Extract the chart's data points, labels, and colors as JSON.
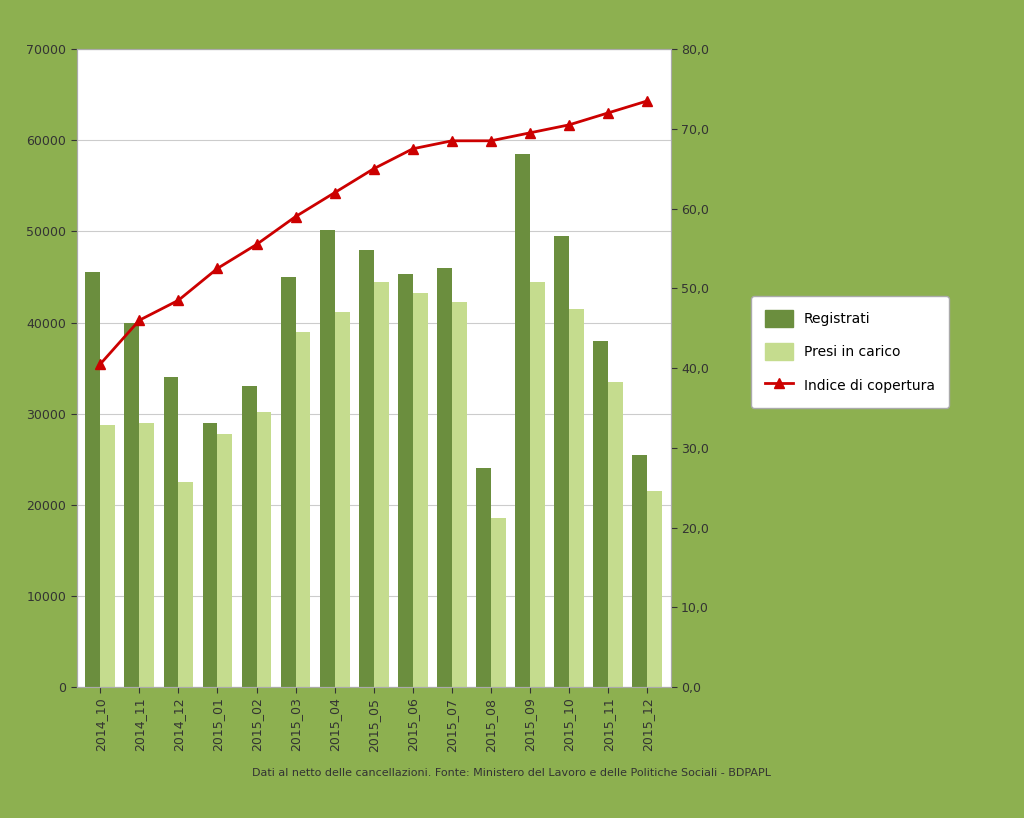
{
  "categories": [
    "2014_10",
    "2014_11",
    "2014_12",
    "2015_01",
    "2015_02",
    "2015_03",
    "2015_04",
    "2015_05",
    "2015_06",
    "2015_07",
    "2015_08",
    "2015_09",
    "2015_10",
    "2015_11",
    "2015_12"
  ],
  "registrati": [
    45500,
    40000,
    34000,
    29000,
    33000,
    45000,
    50200,
    48000,
    45300,
    46000,
    24000,
    58500,
    49500,
    38000,
    25500
  ],
  "presi_in_carico": [
    28800,
    29000,
    22500,
    27800,
    30200,
    39000,
    41200,
    44500,
    43200,
    42300,
    18500,
    44500,
    41500,
    33500,
    21500
  ],
  "indice_copertura": [
    40.5,
    46.0,
    48.5,
    52.5,
    55.5,
    59.0,
    62.0,
    65.0,
    67.5,
    68.5,
    68.5,
    69.5,
    70.5,
    72.0,
    73.5
  ],
  "bar_color_registrati": "#6b8e3e",
  "bar_color_presi": "#c5dc8e",
  "line_color": "#cc0000",
  "ylim_left": [
    0,
    70000
  ],
  "ylim_right": [
    0.0,
    80.0
  ],
  "yticks_left": [
    0,
    10000,
    20000,
    30000,
    40000,
    50000,
    60000,
    70000
  ],
  "yticks_right": [
    0.0,
    10.0,
    20.0,
    30.0,
    40.0,
    50.0,
    60.0,
    70.0,
    80.0
  ],
  "legend_labels": [
    "Registrati",
    "Presi in carico",
    "Indice di copertura"
  ],
  "footnote": "Dati al netto delle cancellazioni. Fonte: Ministero del Lavoro e delle Politiche Sociali - BDPAPL",
  "background_outer": "#8db050",
  "background_inner": "#ffffff",
  "grid_color": "#cccccc",
  "bar_width": 0.38
}
